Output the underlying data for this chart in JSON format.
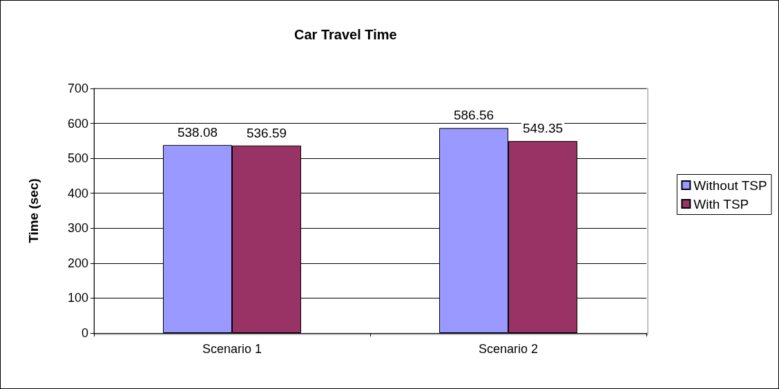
{
  "chart_data": {
    "type": "bar",
    "title": "Car Travel Time",
    "ylabel": "Time (sec)",
    "categories": [
      "Scenario 1",
      "Scenario 2"
    ],
    "series": [
      {
        "name": "Without TSP",
        "color": "#9999ff",
        "values": [
          538.08,
          586.56
        ]
      },
      {
        "name": "With TSP",
        "color": "#993366",
        "values": [
          536.59,
          549.35
        ]
      }
    ],
    "ylim": [
      0,
      700
    ],
    "yticks": [
      0,
      100,
      200,
      300,
      400,
      500,
      600,
      700
    ],
    "grid": "y",
    "legend": "right",
    "data_labels": true
  }
}
